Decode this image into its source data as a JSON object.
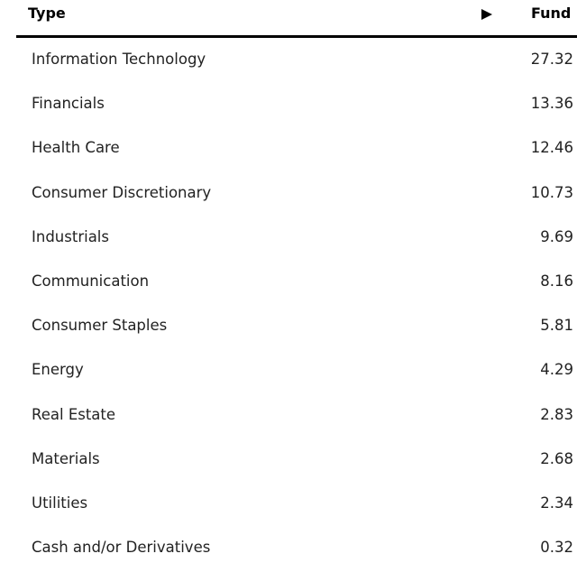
{
  "table": {
    "header": [
      "Type",
      "Fund"
    ],
    "rows": [
      [
        "Information Technology",
        27.32
      ],
      [
        "Financials",
        13.36
      ],
      [
        "Health Care",
        12.46
      ],
      [
        "Consumer Discretionary",
        10.73
      ],
      [
        "Industrials",
        9.69
      ],
      [
        "Communication",
        8.16
      ],
      [
        "Consumer Staples",
        5.81
      ],
      [
        "Energy",
        4.29
      ],
      [
        "Real Estate",
        2.83
      ],
      [
        "Materials",
        2.68
      ],
      [
        "Utilities",
        2.34
      ],
      [
        "Cash and/or Derivatives",
        0.32
      ]
    ]
  }
}
